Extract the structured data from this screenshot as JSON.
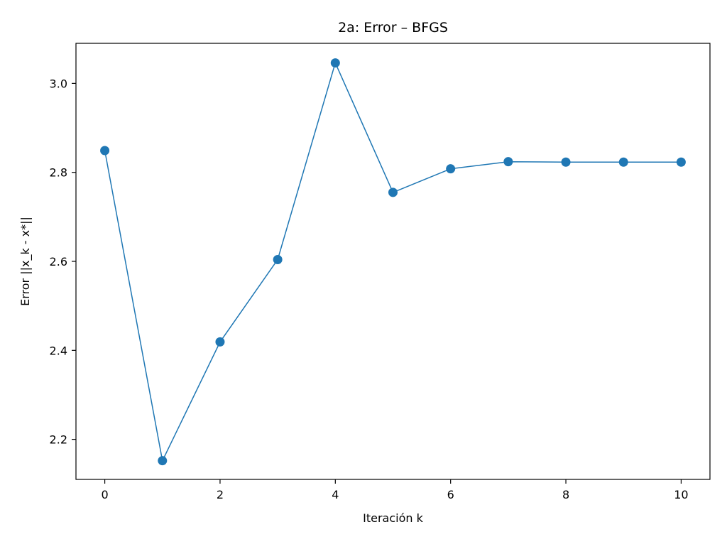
{
  "chart_data": {
    "type": "line",
    "title": "2a: Error – BFGS",
    "xlabel": "Iteración k",
    "ylabel": "Error ||x_k - x*||",
    "x": [
      0,
      1,
      2,
      3,
      4,
      5,
      6,
      7,
      8,
      9,
      10
    ],
    "series": [
      {
        "values": [
          2.849,
          2.152,
          2.419,
          2.604,
          3.046,
          2.755,
          2.808,
          2.824,
          2.823,
          2.823,
          2.823
        ]
      }
    ],
    "xlim": [
      -0.5,
      10.5
    ],
    "ylim": [
      2.11,
      3.09
    ],
    "xticks": [
      0,
      2,
      4,
      6,
      8,
      10
    ],
    "yticks": [
      2.2,
      2.4,
      2.6,
      2.8,
      3.0
    ],
    "xtick_labels": [
      "0",
      "2",
      "4",
      "6",
      "8",
      "10"
    ],
    "ytick_labels": [
      "2.2",
      "2.4",
      "2.6",
      "2.8",
      "3.0"
    ],
    "line_color": "#1f77b4",
    "marker": "circle",
    "grid": false,
    "legend": false
  }
}
